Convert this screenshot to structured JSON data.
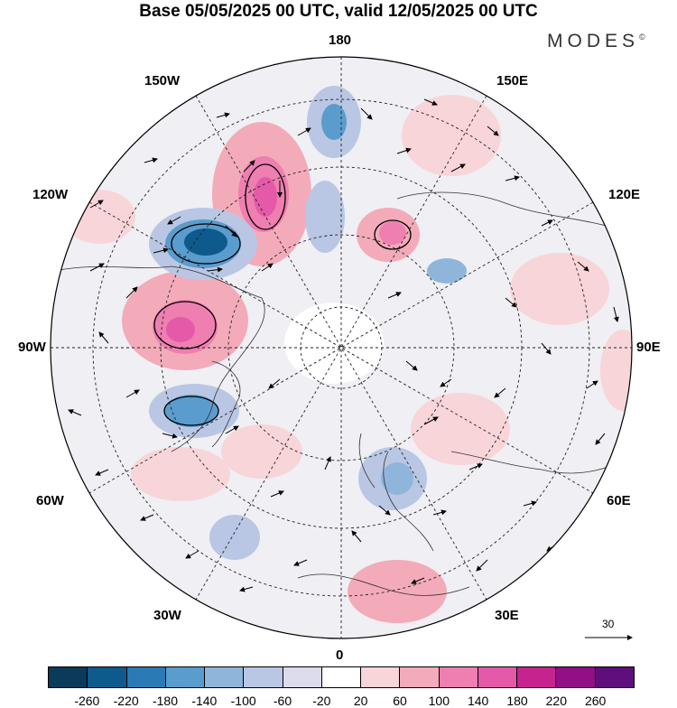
{
  "title": "Base 05/05/2025 00 UTC, valid 12/05/2025 00 UTC",
  "brand": "MODES",
  "brand_mark": "©",
  "lon_labels": {
    "l180": "180",
    "l150w": "150W",
    "l150e": "150E",
    "l120w": "120W",
    "l120e": "120E",
    "l90w": "90W",
    "l90e": "90E",
    "l60w": "60W",
    "l60e": "60E",
    "l30w": "30W",
    "l30e": "30E",
    "l0": "0"
  },
  "reference_vector": "30",
  "colorbar": {
    "ticks": [
      "-260",
      "-220",
      "-180",
      "-140",
      "-100",
      "-60",
      "-20",
      "20",
      "60",
      "100",
      "140",
      "180",
      "220",
      "260"
    ],
    "colors": [
      "#0b3a5a",
      "#0e5a8c",
      "#2a7ab5",
      "#5a9ccd",
      "#8fb5db",
      "#b9c7e4",
      "#dcdcec",
      "#ffffff",
      "#f8d5d8",
      "#f3abb9",
      "#ee7fb0",
      "#e45aa8",
      "#c6238f",
      "#930f86",
      "#5e0f7c"
    ]
  },
  "colors": {
    "land_gray": "#eeeeee",
    "grid": "#222222"
  }
}
